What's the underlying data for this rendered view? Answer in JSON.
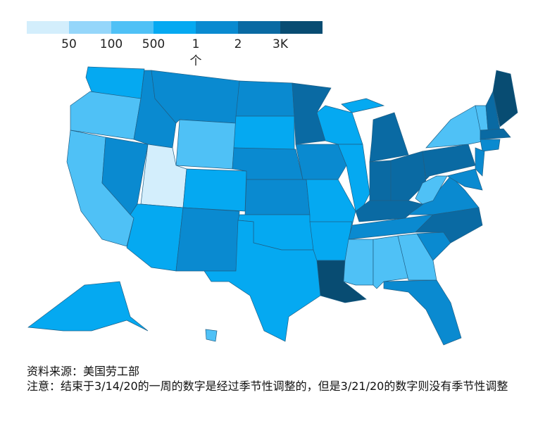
{
  "legend": {
    "colors": [
      "#d3eefc",
      "#95d6fa",
      "#4fc1f6",
      "#05a9f1",
      "#0a8ad0",
      "#0a6aa3",
      "#084c72"
    ],
    "labels": [
      "50",
      "100",
      "500",
      "1",
      "2",
      "3K"
    ],
    "unit_note": "个"
  },
  "regions": [
    {
      "color": "#05a9f1"
    },
    {
      "color": "#4fc1f6"
    },
    {
      "color": "#4fc1f6"
    },
    {
      "color": "#0a8ad0"
    },
    {
      "color": "#0a8ad0"
    },
    {
      "color": "#0a8ad0"
    },
    {
      "color": "#4fc1f6"
    },
    {
      "color": "#d3eefc"
    },
    {
      "color": "#05a9f1"
    },
    {
      "color": "#05a9f1"
    },
    {
      "color": "#0a8ad0"
    },
    {
      "color": "#0a8ad0"
    },
    {
      "color": "#05a9f1"
    },
    {
      "color": "#0a8ad0"
    },
    {
      "color": "#0a8ad0"
    },
    {
      "color": "#05a9f1"
    },
    {
      "color": "#05a9f1"
    },
    {
      "color": "#0a6aa3"
    },
    {
      "color": "#0a8ad0"
    },
    {
      "color": "#05a9f1"
    },
    {
      "color": "#05a9f1"
    },
    {
      "color": "#084c72"
    },
    {
      "color": "#05a9f1"
    },
    {
      "color": "#05a9f1"
    },
    {
      "color": "#0a6aa3"
    },
    {
      "color": "#0a6aa3"
    },
    {
      "color": "#0a6aa3"
    },
    {
      "color": "#0a6aa3"
    },
    {
      "color": "#0a8ad0"
    },
    {
      "color": "#0a8ad0"
    },
    {
      "color": "#4fc1f6"
    },
    {
      "color": "#4fc1f6"
    },
    {
      "color": "#4fc1f6"
    },
    {
      "color": "#0a8ad0"
    },
    {
      "color": "#0a8ad0"
    },
    {
      "color": "#0a6aa3"
    },
    {
      "color": "#0a8ad0"
    },
    {
      "color": "#4fc1f6"
    },
    {
      "color": "#0a6aa3"
    },
    {
      "color": "#4fc1f6"
    },
    {
      "color": "#0a8ad0"
    },
    {
      "color": "#0a8ad0"
    },
    {
      "color": "#4fc1f6"
    },
    {
      "color": "#0a6aa3"
    },
    {
      "color": "#084c72"
    },
    {
      "color": "#0a6aa3"
    },
    {
      "color": "#05a9f1"
    },
    {
      "color": "#05a9f1"
    },
    {
      "color": "#4fc1f6"
    }
  ],
  "notes": {
    "source": "资料来源：美国劳工部",
    "note": "注意：结束于3/14/20的一周的数字是经过季节性调整的，但是3/21/20的数字则没有季节性调整"
  }
}
